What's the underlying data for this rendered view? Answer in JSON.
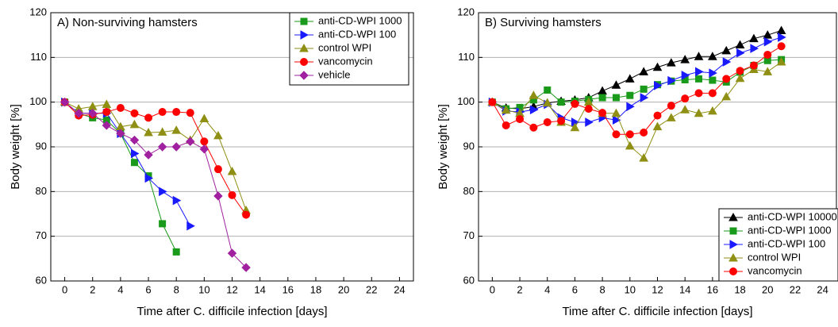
{
  "chart_data": [
    {
      "type": "line",
      "title": "A) Non-surviving hamsters",
      "x_label": "Time after C. difficile infection [days]",
      "y_label": "Body weight [%]",
      "xlim": [
        -1,
        25
      ],
      "xticks": [
        0,
        2,
        4,
        6,
        8,
        10,
        12,
        14,
        16,
        18,
        20,
        22,
        24
      ],
      "ylim": [
        60,
        120
      ],
      "yticks": [
        60,
        70,
        80,
        90,
        100,
        110,
        120
      ],
      "grid": true,
      "legend": "upper right",
      "series": [
        {
          "name": "anti-CD-WPI 1000",
          "color": "#1a9a1a",
          "marker": "square",
          "x": [
            0,
            1,
            2,
            3,
            4,
            5,
            6,
            7,
            8
          ],
          "values": [
            100,
            97.5,
            96.5,
            96,
            93,
            86.5,
            83.5,
            72.8,
            66.5
          ]
        },
        {
          "name": "anti-CD-WPI 100",
          "color": "#1a1aff",
          "marker": "triangle-right",
          "x": [
            0,
            1,
            2,
            3,
            4,
            5,
            6,
            7,
            8,
            9
          ],
          "values": [
            100,
            97.5,
            97.5,
            97.5,
            93,
            88.5,
            83,
            80,
            78,
            72.3
          ]
        },
        {
          "name": "control WPI",
          "color": "#8f8f14",
          "marker": "triangle-up",
          "x": [
            0,
            1,
            2,
            3,
            4,
            5,
            6,
            7,
            8,
            9,
            10,
            11,
            12,
            13
          ],
          "values": [
            100,
            98.5,
            99,
            99.5,
            94.5,
            95,
            93.2,
            93.3,
            93.7,
            91.5,
            96.3,
            92.5,
            84.5,
            75.8
          ]
        },
        {
          "name": "vancomycin",
          "color": "#ff0000",
          "marker": "circle",
          "x": [
            0,
            1,
            2,
            3,
            4,
            5,
            6,
            7,
            8,
            9,
            10,
            11,
            12,
            13
          ],
          "values": [
            100,
            97,
            97.2,
            97.8,
            98.7,
            97.5,
            96.5,
            97.8,
            97.8,
            97.6,
            91.2,
            85,
            79.2,
            74.8
          ]
        },
        {
          "name": "vehicle",
          "color": "#a020a0",
          "marker": "diamond",
          "x": [
            0,
            1,
            2,
            3,
            4,
            5,
            6,
            7,
            8,
            9,
            10,
            11,
            12,
            13
          ],
          "values": [
            100,
            97.5,
            97.5,
            94.8,
            93,
            91.5,
            88.2,
            90,
            90,
            91.2,
            89.5,
            79,
            66.2,
            63
          ]
        }
      ]
    },
    {
      "type": "line",
      "title": "B) Surviving hamsters",
      "x_label": "Time after C. difficile infection [days]",
      "y_label": "Body weight [%]",
      "xlim": [
        -1,
        25
      ],
      "xticks": [
        0,
        2,
        4,
        6,
        8,
        10,
        12,
        14,
        16,
        18,
        20,
        22,
        24
      ],
      "ylim": [
        60,
        120
      ],
      "yticks": [
        60,
        70,
        80,
        90,
        100,
        110,
        120
      ],
      "grid": true,
      "legend": "lower right",
      "series": [
        {
          "name": "anti-CD-WPI 10000",
          "color": "#000000",
          "marker": "triangle-up",
          "x": [
            0,
            1,
            2,
            3,
            4,
            5,
            6,
            7,
            8,
            9,
            10,
            11,
            12,
            13,
            14,
            15,
            16,
            17,
            18,
            19,
            20,
            21
          ],
          "values": [
            100,
            98.7,
            98.5,
            99,
            99.8,
            100.2,
            100.5,
            101,
            102.5,
            103.8,
            105.2,
            106.8,
            107.8,
            108.8,
            109.5,
            110.2,
            110.2,
            111.5,
            112.8,
            114.2,
            115,
            116
          ]
        },
        {
          "name": "anti-CD-WPI 1000",
          "color": "#1a9a1a",
          "marker": "square",
          "x": [
            0,
            1,
            2,
            3,
            4,
            5,
            6,
            7,
            8,
            9,
            10,
            11,
            12,
            13,
            14,
            15,
            16,
            17,
            18,
            19,
            20,
            21
          ],
          "values": [
            100,
            98.5,
            98.8,
            100.5,
            102.7,
            100,
            100.2,
            100.6,
            101,
            101,
            101.5,
            102.9,
            103.9,
            104.7,
            105,
            105.2,
            104.9,
            104.5,
            106.7,
            108.2,
            109.3,
            109.5
          ]
        },
        {
          "name": "anti-CD-WPI 100",
          "color": "#1a1aff",
          "marker": "triangle-right",
          "x": [
            0,
            1,
            2,
            3,
            4,
            5,
            6,
            7,
            8,
            9,
            10,
            11,
            12,
            13,
            14,
            15,
            16,
            17,
            18,
            19,
            20,
            21
          ],
          "values": [
            100,
            98,
            97.8,
            98.3,
            99.5,
            96.5,
            95.5,
            95.5,
            96.5,
            96,
            99,
            101,
            103.7,
            104.8,
            106,
            106.8,
            106.5,
            109,
            111,
            112,
            113.5,
            114.5
          ]
        },
        {
          "name": "control WPI",
          "color": "#8f8f14",
          "marker": "triangle-up",
          "x": [
            0,
            1,
            2,
            3,
            4,
            5,
            6,
            7,
            8,
            9,
            10,
            11,
            12,
            13,
            14,
            15,
            16,
            17,
            18,
            19,
            20,
            21
          ],
          "values": [
            100,
            98.2,
            97.5,
            101.5,
            99.8,
            95.5,
            94.3,
            100,
            97.5,
            97.5,
            90.2,
            87.5,
            94.5,
            96.5,
            98.3,
            97.5,
            98,
            101.2,
            105.3,
            107.3,
            106.8,
            109
          ]
        },
        {
          "name": "vancomycin",
          "color": "#ff0000",
          "marker": "circle",
          "x": [
            0,
            1,
            2,
            3,
            4,
            5,
            6,
            7,
            8,
            9,
            10,
            11,
            12,
            13,
            14,
            15,
            16,
            17,
            18,
            19,
            20,
            21
          ],
          "values": [
            100,
            94.8,
            96.2,
            94.3,
            95.5,
            95.8,
            99.6,
            98.5,
            97.6,
            92.8,
            92.8,
            93.2,
            97,
            99.2,
            100.8,
            102,
            102,
            105.2,
            107,
            108.2,
            110.6,
            112.5
          ]
        }
      ]
    }
  ]
}
